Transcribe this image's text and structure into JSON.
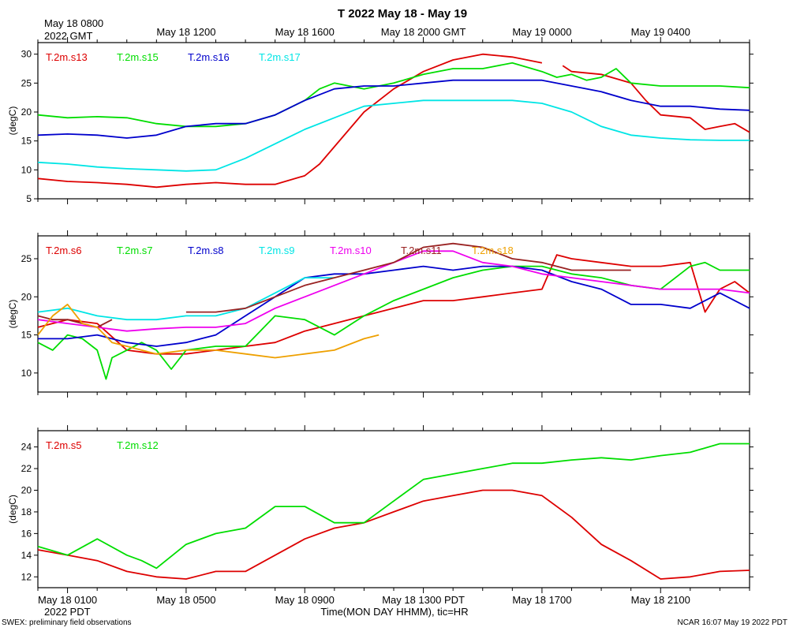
{
  "header": {
    "title": "T 2022 May 18 - May 19",
    "gmt_first_line1": "May 18 0800",
    "gmt_first_line2": "2022 GMT",
    "gmt_ticks": [
      "May 18 1200",
      "May 18 1600",
      "May 18 2000 GMT",
      "May 19 0000",
      "May 19 0400"
    ]
  },
  "footer": {
    "pdt_ticks": [
      "May 18 0100",
      "May 18 0500",
      "May 18 0900",
      "May 18 1300 PDT",
      "May 18 1700",
      "May 18 2100"
    ],
    "pdt_year": "2022 PDT",
    "xlabel": "Time(MON DAY HHMM), tic=HR",
    "left_note": "SWEX: preliminary field observations",
    "right_note": "NCAR 16:07 May 19 2022 PDT"
  },
  "chart_data": [
    {
      "type": "line",
      "ylabel": "(degC)",
      "ylim": [
        5,
        32
      ],
      "yticks": [
        5,
        10,
        15,
        20,
        25,
        30
      ],
      "x_unit": "hours since May 18 0000 PDT",
      "xlim": [
        0,
        24
      ],
      "series": [
        {
          "name": "T.2m.s13",
          "color": "#dd0000",
          "x": [
            0,
            1,
            2,
            3,
            4,
            5,
            6,
            7,
            8,
            9,
            9.5,
            10,
            10.5,
            11,
            12,
            13,
            14,
            15,
            16,
            17,
            17.5,
            17.7,
            18,
            19,
            20,
            20.5,
            21,
            22,
            22.5,
            23,
            23.5,
            24
          ],
          "values": [
            8.5,
            8,
            7.8,
            7.5,
            7.0,
            7.5,
            7.8,
            7.5,
            7.5,
            9,
            11,
            14,
            17,
            20,
            24,
            27,
            29,
            30,
            29.5,
            28.5,
            null,
            28,
            27,
            26.5,
            25,
            22,
            19.5,
            19,
            17,
            17.5,
            18,
            16.5
          ]
        },
        {
          "name": "T.2m.s15",
          "color": "#00dd00",
          "x": [
            0,
            1,
            2,
            3,
            4,
            5,
            6,
            7,
            8,
            9,
            9.5,
            10,
            10.5,
            11,
            12,
            13,
            14,
            15,
            16,
            17,
            17.5,
            18,
            18.5,
            19,
            19.5,
            20,
            21,
            22,
            23,
            24
          ],
          "values": [
            19.5,
            19,
            19.2,
            19,
            18,
            17.5,
            17.5,
            18,
            19.5,
            22,
            24,
            25,
            24.5,
            24,
            25,
            26.5,
            27.5,
            27.5,
            28.5,
            27,
            26,
            26.5,
            25.5,
            26,
            27.5,
            25,
            24.5,
            24.5,
            24.5,
            24.2
          ]
        },
        {
          "name": "T.2m.s16",
          "color": "#0000cc",
          "x": [
            0,
            1,
            2,
            3,
            4,
            5,
            6,
            7,
            8,
            9,
            10,
            11,
            12,
            13,
            14,
            15,
            16,
            17,
            18,
            19,
            20,
            21,
            22,
            23,
            24
          ],
          "values": [
            16,
            16.2,
            16,
            15.5,
            16,
            17.5,
            18,
            18,
            19.5,
            22,
            24,
            24.5,
            24.5,
            25,
            25.5,
            25.5,
            25.5,
            25.5,
            24.5,
            23.5,
            22,
            21,
            21,
            20.5,
            20.3
          ]
        },
        {
          "name": "T.2m.s17",
          "color": "#00e5e5",
          "x": [
            0,
            1,
            2,
            3,
            4,
            5,
            6,
            7,
            8,
            9,
            10,
            11,
            12,
            13,
            14,
            15,
            16,
            17,
            18,
            19,
            20,
            21,
            22,
            23,
            24
          ],
          "values": [
            11.3,
            11,
            10.5,
            10.2,
            10,
            9.8,
            10,
            12,
            14.5,
            17,
            19,
            21,
            21.5,
            22,
            22,
            22,
            22,
            21.5,
            20,
            17.5,
            16,
            15.5,
            15.2,
            15.1,
            15.1
          ]
        }
      ]
    },
    {
      "type": "line",
      "ylabel": "(degC)",
      "ylim": [
        7.5,
        28
      ],
      "yticks": [
        10,
        15,
        20,
        25
      ],
      "x_unit": "hours since May 18 0000 PDT",
      "xlim": [
        0,
        24
      ],
      "series": [
        {
          "name": "T.2m.s6",
          "color": "#dd0000",
          "x": [
            0,
            1,
            2,
            3,
            4,
            5,
            6,
            7,
            8,
            9,
            10,
            11,
            12,
            13,
            14,
            15,
            16,
            17,
            17.5,
            18,
            19,
            20,
            21,
            22,
            22.5,
            23,
            23.5,
            24
          ],
          "values": [
            16,
            17,
            16.5,
            13,
            12.5,
            12.5,
            13,
            13.5,
            14,
            15.5,
            16.5,
            17.5,
            18.5,
            19.5,
            19.5,
            20,
            20.5,
            21,
            25.5,
            25,
            24.5,
            24,
            24,
            24.5,
            18,
            21,
            22,
            20.5
          ]
        },
        {
          "name": "T.2m.s7",
          "color": "#00dd00",
          "x": [
            0,
            0.5,
            1,
            1.5,
            2,
            2.3,
            2.5,
            3,
            3.5,
            4,
            4.5,
            5,
            6,
            7,
            7.5,
            8,
            9,
            10,
            11,
            12,
            13,
            14,
            15,
            16,
            17,
            18,
            19,
            20,
            21,
            22,
            22.5,
            23,
            24
          ],
          "values": [
            14,
            13,
            15,
            14.5,
            13,
            9.2,
            12,
            13,
            14,
            13,
            10.5,
            13,
            13.5,
            13.5,
            15.5,
            17.5,
            17,
            15,
            17.5,
            19.5,
            21,
            22.5,
            23.5,
            24,
            24,
            23,
            22.5,
            21.5,
            21,
            24,
            24.5,
            23.5,
            23.5
          ]
        },
        {
          "name": "T.2m.s8",
          "color": "#0000cc",
          "x": [
            0,
            1,
            2,
            3,
            4,
            5,
            6,
            7,
            8,
            9,
            10,
            11,
            12,
            13,
            14,
            15,
            16,
            17,
            18,
            19,
            20,
            21,
            22,
            23,
            24
          ],
          "values": [
            14.5,
            14.5,
            15,
            14,
            13.5,
            14,
            15,
            17.5,
            20,
            22.5,
            23,
            23,
            23.5,
            24,
            23.5,
            24,
            24,
            23.5,
            22,
            21,
            19,
            19,
            18.5,
            20.5,
            18.5
          ]
        },
        {
          "name": "T.2m.s9",
          "color": "#00e5e5",
          "x": [
            0,
            1,
            2,
            3,
            4,
            5,
            6,
            7,
            8,
            9,
            10
          ],
          "values": [
            18,
            18.5,
            17.5,
            17,
            17,
            17.5,
            17.5,
            18.5,
            20.5,
            22.5,
            22.5
          ]
        },
        {
          "name": "T.2m.s10",
          "color": "#ee00ee",
          "x": [
            0,
            1,
            2,
            3,
            4,
            5,
            6,
            7,
            8,
            9,
            10,
            11,
            12,
            13,
            14,
            15,
            16,
            17,
            18,
            19,
            20,
            21,
            22,
            23,
            24
          ],
          "values": [
            17,
            16.5,
            16,
            15.5,
            15.8,
            16,
            16,
            16.5,
            18.5,
            20,
            21.5,
            23,
            24.5,
            26,
            26,
            24.5,
            24,
            23,
            22.5,
            22,
            21.5,
            21,
            21,
            21,
            20.5
          ]
        },
        {
          "name": "T.2m.s11",
          "color": "#992222",
          "x": [
            0,
            0.5,
            1,
            1.5,
            2,
            2.5,
            3,
            4,
            5,
            6,
            7,
            8,
            9,
            10,
            11,
            12,
            13,
            14,
            15,
            16,
            17,
            18,
            19,
            20
          ],
          "values": [
            17.5,
            17,
            17,
            16.5,
            16,
            17,
            null,
            null,
            18,
            18,
            18.5,
            20,
            21.5,
            22.5,
            23.5,
            24.5,
            26.5,
            27,
            26.5,
            25,
            24.5,
            23.5,
            23.5,
            23.5
          ]
        },
        {
          "name": "T.2m.s18",
          "color": "#eea000",
          "x": [
            0,
            0.5,
            1,
            1.5,
            2,
            2.5,
            3,
            4,
            5,
            6,
            7,
            8,
            9,
            10,
            11,
            11.5
          ],
          "values": [
            15,
            17.5,
            19,
            16.5,
            16,
            14,
            13.5,
            12.5,
            13,
            13,
            12.5,
            12,
            12.5,
            13,
            14.5,
            15
          ]
        }
      ]
    },
    {
      "type": "line",
      "ylabel": "(degC)",
      "ylim": [
        11,
        25.5
      ],
      "yticks": [
        12,
        14,
        16,
        18,
        20,
        22,
        24
      ],
      "x_unit": "hours since May 18 0000 PDT",
      "xlim": [
        0,
        24
      ],
      "series": [
        {
          "name": "T.2m.s5",
          "color": "#dd0000",
          "x": [
            0,
            1,
            2,
            3,
            4,
            5,
            6,
            7,
            8,
            9,
            10,
            11,
            12,
            13,
            14,
            15,
            16,
            17,
            18,
            19,
            20,
            21,
            22,
            23,
            24
          ],
          "values": [
            14.5,
            14,
            13.5,
            12.5,
            12,
            11.8,
            12.5,
            12.5,
            14,
            15.5,
            16.5,
            17,
            18,
            19,
            19.5,
            20,
            20,
            19.5,
            17.5,
            15,
            13.5,
            11.8,
            12,
            12.5,
            12.6
          ]
        },
        {
          "name": "T.2m.s12",
          "color": "#00dd00",
          "x": [
            0,
            1,
            2,
            3,
            3.5,
            4,
            5,
            6,
            7,
            8,
            9,
            10,
            11,
            12,
            13,
            14,
            15,
            16,
            17,
            18,
            19,
            20,
            21,
            22,
            23,
            24
          ],
          "values": [
            14.8,
            14,
            15.5,
            14,
            13.5,
            12.8,
            15,
            16,
            16.5,
            18.5,
            18.5,
            17,
            17,
            19,
            21,
            21.5,
            22,
            22.5,
            22.5,
            22.8,
            23,
            22.8,
            23.2,
            23.5,
            24.3,
            24.3
          ]
        }
      ]
    }
  ]
}
